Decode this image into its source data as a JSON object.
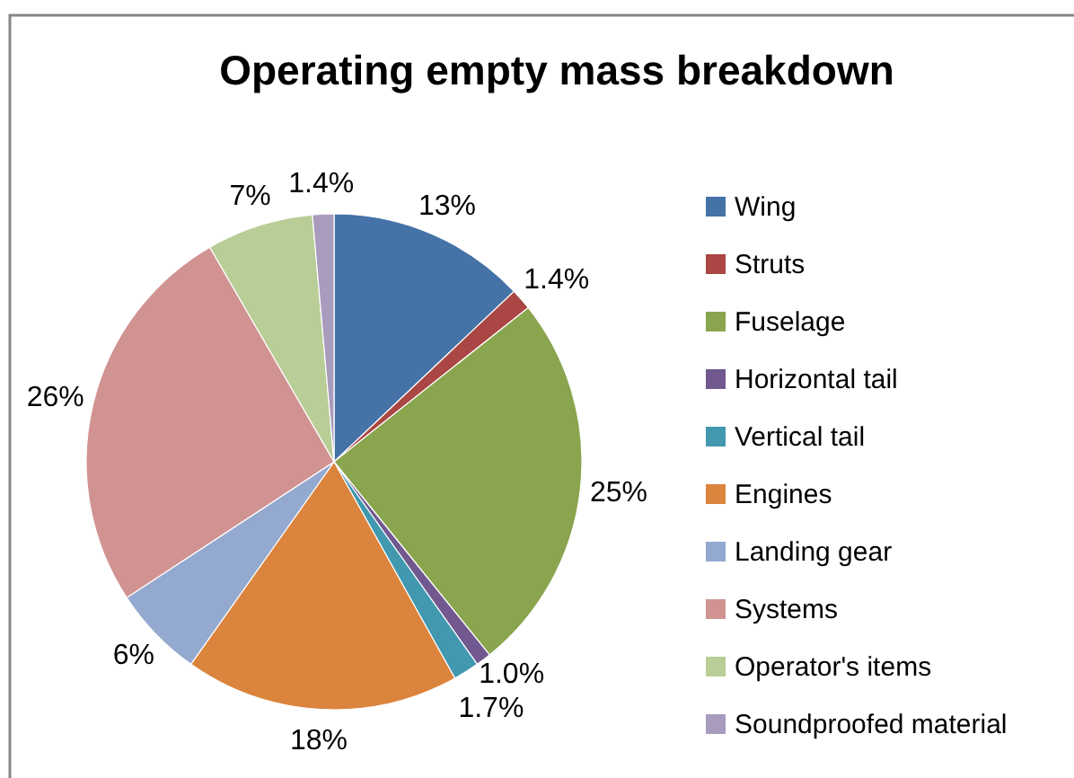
{
  "chart_data": {
    "type": "pie",
    "title": "Operating empty mass breakdown",
    "categories": [
      "Wing",
      "Struts",
      "Fuselage",
      "Horizontal tail",
      "Vertical tail",
      "Engines",
      "Landing gear",
      "Systems",
      "Operator's items",
      "Soundproofed material"
    ],
    "values": [
      13,
      1.4,
      25,
      1.0,
      1.7,
      18,
      6,
      26,
      7,
      1.4
    ],
    "colors": [
      "#4572a7",
      "#aa4643",
      "#89a54e",
      "#71588f",
      "#4198af",
      "#db843d",
      "#93a9cf",
      "#d19392",
      "#b9cd96",
      "#a99bbd"
    ],
    "value_labels": [
      "13%",
      "1.4%",
      "25%",
      "1.0%",
      "1.7%",
      "18%",
      "6%",
      "26%",
      "7%",
      "1.4%"
    ],
    "legend": "right"
  }
}
